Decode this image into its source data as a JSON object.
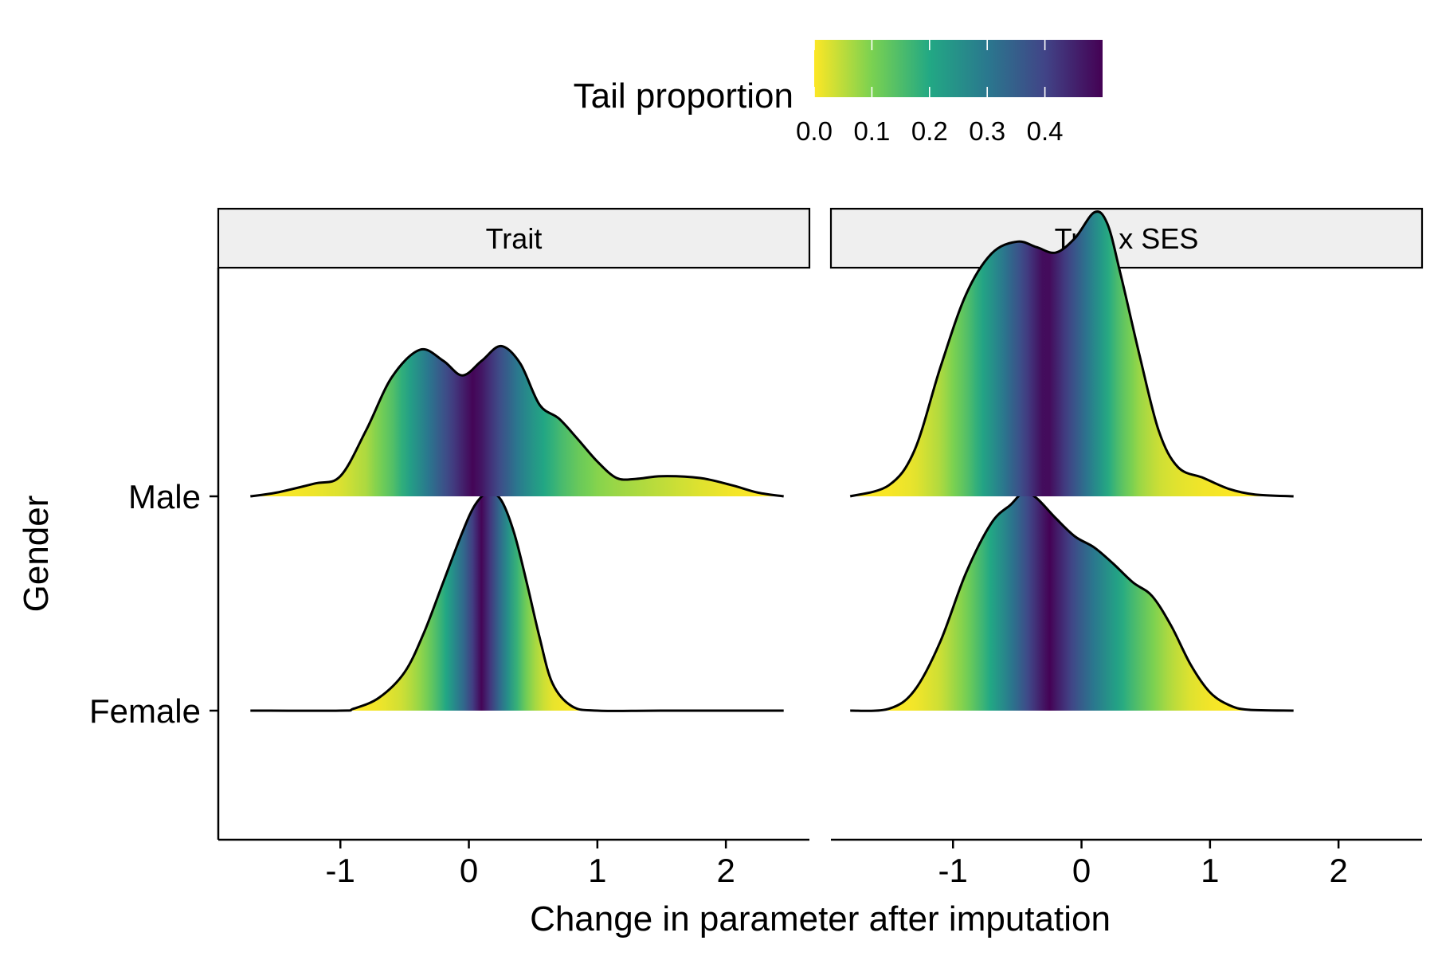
{
  "chart_data": {
    "type": "ridgeline",
    "xlabel": "Change in parameter after imputation",
    "ylabel": "Gender",
    "xlim": [
      -1.95,
      2.65
    ],
    "x_ticks": [
      -1,
      0,
      1,
      2
    ],
    "x_tick_labels": [
      "-1",
      "0",
      "1",
      "2"
    ],
    "y_categories": [
      "Male",
      "Female"
    ],
    "grid": false,
    "legend": {
      "title": "Tail proportion",
      "position": "top",
      "ticks": [
        0.0,
        0.1,
        0.2,
        0.3,
        0.4
      ],
      "tick_labels": [
        "0.0",
        "0.1",
        "0.2",
        "0.3",
        "0.4"
      ],
      "range": [
        0,
        0.5
      ],
      "palette": [
        "#fde725",
        "#7ad151",
        "#22a884",
        "#2a788e",
        "#414487",
        "#440154"
      ]
    },
    "panels": [
      {
        "label": "Trait",
        "series": [
          {
            "category": "Male",
            "x_range": [
              -1.7,
              2.45
            ],
            "median": 0.1,
            "density": [
              [
                -1.7,
                0.0
              ],
              [
                -1.5,
                0.04
              ],
              [
                -1.2,
                0.14
              ],
              [
                -1.0,
                0.22
              ],
              [
                -0.8,
                0.72
              ],
              [
                -0.6,
                1.3
              ],
              [
                -0.38,
                1.6
              ],
              [
                -0.2,
                1.48
              ],
              [
                -0.05,
                1.32
              ],
              [
                0.1,
                1.48
              ],
              [
                0.25,
                1.64
              ],
              [
                0.4,
                1.45
              ],
              [
                0.55,
                1.0
              ],
              [
                0.7,
                0.85
              ],
              [
                0.85,
                0.62
              ],
              [
                1.0,
                0.38
              ],
              [
                1.15,
                0.2
              ],
              [
                1.3,
                0.19
              ],
              [
                1.5,
                0.22
              ],
              [
                1.8,
                0.2
              ],
              [
                2.05,
                0.12
              ],
              [
                2.25,
                0.04
              ],
              [
                2.45,
                0.0
              ]
            ]
          },
          {
            "category": "Female",
            "x_range": [
              -1.7,
              2.45
            ],
            "median": 0.15,
            "density": [
              [
                -1.7,
                0.0
              ],
              [
                -1.0,
                0.0
              ],
              [
                -0.9,
                0.02
              ],
              [
                -0.7,
                0.14
              ],
              [
                -0.5,
                0.42
              ],
              [
                -0.35,
                0.85
              ],
              [
                -0.2,
                1.4
              ],
              [
                -0.05,
                1.95
              ],
              [
                0.05,
                2.25
              ],
              [
                0.15,
                2.38
              ],
              [
                0.25,
                2.3
              ],
              [
                0.35,
                1.95
              ],
              [
                0.45,
                1.4
              ],
              [
                0.55,
                0.8
              ],
              [
                0.65,
                0.3
              ],
              [
                0.8,
                0.05
              ],
              [
                1.0,
                0.0
              ],
              [
                1.5,
                0.0
              ],
              [
                2.45,
                0.0
              ]
            ]
          }
        ]
      },
      {
        "label": "Trait x SES",
        "series": [
          {
            "category": "Male",
            "x_range": [
              -1.8,
              1.65
            ],
            "median": -0.2,
            "density": [
              [
                -1.8,
                0.0
              ],
              [
                -1.5,
                0.12
              ],
              [
                -1.3,
                0.5
              ],
              [
                -1.1,
                1.4
              ],
              [
                -0.9,
                2.2
              ],
              [
                -0.7,
                2.65
              ],
              [
                -0.5,
                2.78
              ],
              [
                -0.35,
                2.72
              ],
              [
                -0.2,
                2.66
              ],
              [
                -0.05,
                2.82
              ],
              [
                0.1,
                3.1
              ],
              [
                0.2,
                2.98
              ],
              [
                0.3,
                2.45
              ],
              [
                0.45,
                1.55
              ],
              [
                0.6,
                0.72
              ],
              [
                0.75,
                0.32
              ],
              [
                0.95,
                0.2
              ],
              [
                1.15,
                0.08
              ],
              [
                1.35,
                0.02
              ],
              [
                1.65,
                0.0
              ]
            ]
          },
          {
            "category": "Female",
            "x_range": [
              -1.8,
              1.65
            ],
            "median": -0.1,
            "density": [
              [
                -1.8,
                0.0
              ],
              [
                -1.5,
                0.02
              ],
              [
                -1.3,
                0.22
              ],
              [
                -1.1,
                0.75
              ],
              [
                -0.9,
                1.5
              ],
              [
                -0.7,
                2.05
              ],
              [
                -0.55,
                2.25
              ],
              [
                -0.45,
                2.38
              ],
              [
                -0.35,
                2.32
              ],
              [
                -0.2,
                2.1
              ],
              [
                -0.05,
                1.9
              ],
              [
                0.1,
                1.78
              ],
              [
                0.25,
                1.6
              ],
              [
                0.4,
                1.4
              ],
              [
                0.55,
                1.25
              ],
              [
                0.7,
                0.92
              ],
              [
                0.85,
                0.5
              ],
              [
                1.0,
                0.2
              ],
              [
                1.15,
                0.06
              ],
              [
                1.3,
                0.01
              ],
              [
                1.65,
                0.0
              ]
            ]
          }
        ]
      }
    ]
  }
}
